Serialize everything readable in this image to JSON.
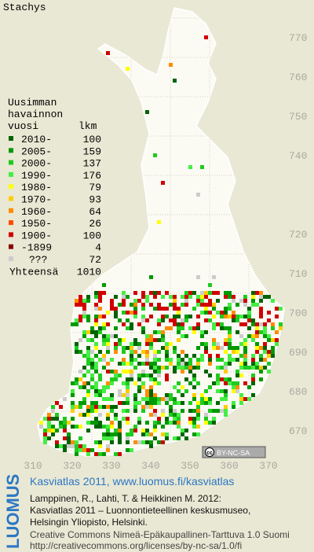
{
  "title": "Stachys",
  "legend": {
    "header": [
      "Uusimman",
      "havainnon",
      "vuosi"
    ],
    "count_header": "lkm",
    "entries": [
      {
        "label": "2010-",
        "count": 100,
        "color": "#006400"
      },
      {
        "label": "2005-",
        "count": 159,
        "color": "#009a00"
      },
      {
        "label": "2000-",
        "count": 137,
        "color": "#1ecb1e"
      },
      {
        "label": "1990-",
        "count": 176,
        "color": "#44ee44"
      },
      {
        "label": "1980-",
        "count": 79,
        "color": "#ffff00"
      },
      {
        "label": "1970-",
        "count": 93,
        "color": "#ffcc00"
      },
      {
        "label": "1960-",
        "count": 64,
        "color": "#ff8c00"
      },
      {
        "label": "1950-",
        "count": 26,
        "color": "#ff4a00"
      },
      {
        "label": "1900-",
        "count": 100,
        "color": "#d00000"
      },
      {
        "label": "-1899",
        "count": 4,
        "color": "#880000"
      },
      {
        "label": "???",
        "count": 72,
        "color": "#cccccc"
      }
    ],
    "total_label": "Yhteensä",
    "total": 1010
  },
  "y_grid_labels": [
    770,
    760,
    750,
    740,
    720,
    710,
    700,
    690,
    680,
    670
  ],
  "x_grid_labels": [
    310,
    320,
    330,
    340,
    350,
    360,
    370
  ],
  "license_badge": "BY-NC-SA",
  "footer": {
    "brand": "LUOMUS",
    "link": "Kasviatlas 2011, www.luomus.fi/kasviatlas",
    "citation": [
      "Lamppinen, R., Lahti, T. & Heikkinen M. 2012:",
      "Kasviatlas 2011 – Luonnontieteellinen keskusmuseo,",
      "Helsingin Yliopisto, Helsinki."
    ],
    "license": [
      "Creative Commons Nimeä-Epäkaupallinen-Tarttuva 1.0 Suomi",
      "http://creativecommons.org/licenses/by-nc-sa/1.0/fi"
    ]
  }
}
